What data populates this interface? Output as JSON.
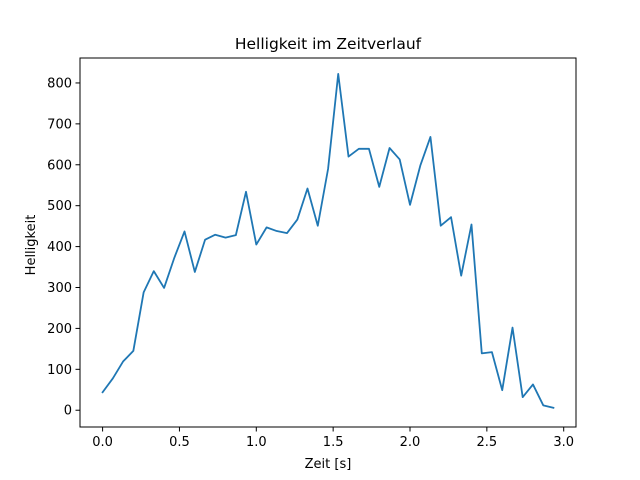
{
  "chart_data": {
    "type": "line",
    "title": "Helligkeit im Zeitverlauf",
    "xlabel": "Zeit [s]",
    "ylabel": "Helligkeit",
    "xlim": [
      -0.147,
      3.08
    ],
    "ylim": [
      -41,
      861
    ],
    "xticks": [
      0.0,
      0.5,
      1.0,
      1.5,
      2.0,
      2.5,
      3.0
    ],
    "xtick_labels": [
      "0.0",
      "0.5",
      "1.0",
      "1.5",
      "2.0",
      "2.5",
      "3.0"
    ],
    "yticks": [
      0,
      100,
      200,
      300,
      400,
      500,
      600,
      700,
      800
    ],
    "ytick_labels": [
      "0",
      "100",
      "200",
      "300",
      "400",
      "500",
      "600",
      "700",
      "800"
    ],
    "grid": false,
    "series": [
      {
        "color": "#1f77b4",
        "x": [
          0.0,
          0.067,
          0.133,
          0.2,
          0.267,
          0.333,
          0.4,
          0.467,
          0.533,
          0.6,
          0.667,
          0.733,
          0.8,
          0.867,
          0.933,
          1.0,
          1.067,
          1.133,
          1.2,
          1.267,
          1.333,
          1.4,
          1.467,
          1.533,
          1.6,
          1.667,
          1.733,
          1.8,
          1.867,
          1.933,
          2.0,
          2.067,
          2.133,
          2.2,
          2.267,
          2.333,
          2.4,
          2.467,
          2.533,
          2.6,
          2.667,
          2.733,
          2.8,
          2.867,
          2.933
        ],
        "y": [
          44,
          78,
          119,
          145,
          288,
          340,
          299,
          373,
          437,
          338,
          417,
          429,
          422,
          428,
          534,
          405,
          447,
          438,
          433,
          466,
          542,
          451,
          590,
          822,
          620,
          639,
          639,
          546,
          641,
          613,
          502,
          598,
          668,
          451,
          472,
          329,
          454,
          139,
          142,
          49,
          202,
          32,
          63,
          12,
          6
        ]
      }
    ]
  }
}
